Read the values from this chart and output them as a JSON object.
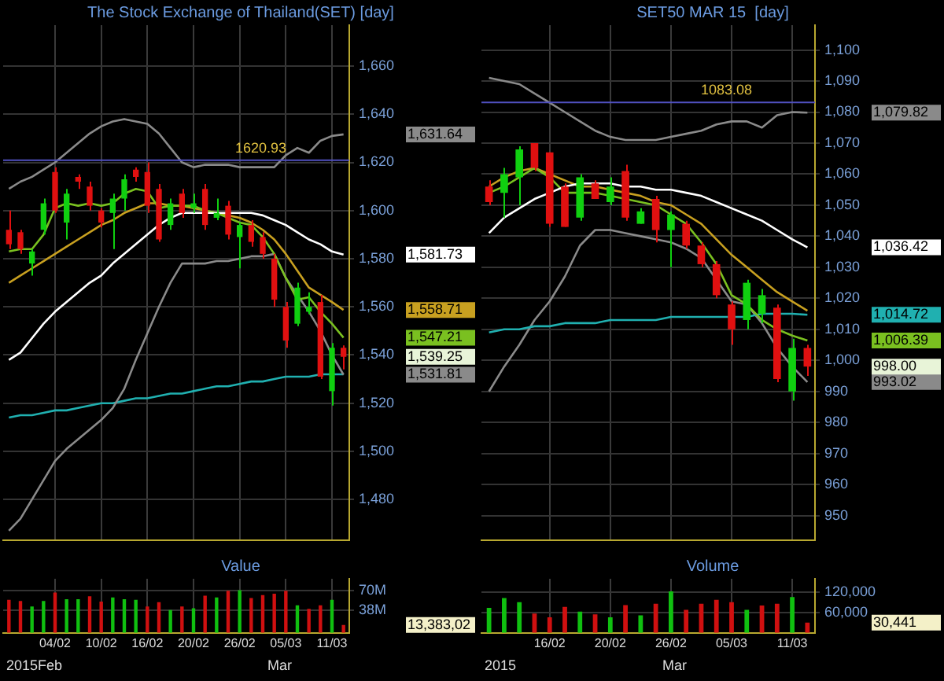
{
  "chart_data": [
    {
      "type": "candlestick",
      "title": "The Stock Exchange of Thailand(SET) [day]",
      "categories": [
        null,
        null,
        null,
        null,
        null,
        null,
        null,
        null,
        null,
        null,
        null,
        null,
        null,
        null,
        null,
        null,
        null,
        null,
        null,
        null,
        null,
        null,
        null,
        null,
        null,
        null,
        null,
        null,
        null,
        null
      ],
      "ohlc": [
        [
          1592,
          1600,
          1584,
          1586
        ],
        [
          1591,
          1592,
          1582,
          1584
        ],
        [
          1578,
          1584,
          1573,
          1583
        ],
        [
          1592,
          1605,
          1590,
          1603
        ],
        [
          1616,
          1618,
          1599,
          1600
        ],
        [
          1595,
          1609,
          1588,
          1607
        ],
        [
          1614,
          1615,
          1609,
          1612
        ],
        [
          1610,
          1612,
          1600,
          1602
        ],
        [
          1600,
          1601,
          1593,
          1595
        ],
        [
          1599,
          1607,
          1584,
          1605
        ],
        [
          1605,
          1615,
          1600,
          1613
        ],
        [
          1617,
          1618,
          1612,
          1614
        ],
        [
          1616,
          1620,
          1599,
          1602
        ],
        [
          1609,
          1611,
          1587,
          1588
        ],
        [
          1594,
          1605,
          1592,
          1603
        ],
        [
          1607,
          1609,
          1597,
          1599
        ],
        [
          1601,
          1607,
          1599,
          1603
        ],
        [
          1609,
          1611,
          1592,
          1594
        ],
        [
          1597,
          1605,
          1596,
          1599
        ],
        [
          1602,
          1604,
          1588,
          1590
        ],
        [
          1589,
          1595,
          1576,
          1594
        ],
        [
          1594,
          1596,
          1585,
          1587
        ],
        [
          1589,
          1591,
          1580,
          1582
        ],
        [
          1580,
          1582,
          1560,
          1563
        ],
        [
          1560,
          1562,
          1543,
          1546
        ],
        [
          1553,
          1570,
          1552,
          1568
        ],
        [
          1558,
          1566,
          1557,
          1560
        ],
        [
          1562,
          1565,
          1530,
          1531
        ],
        [
          1525,
          1545,
          1519,
          1543
        ],
        [
          1543,
          1544,
          1534,
          1539.25
        ]
      ],
      "colors": [
        "#e01010",
        "#e01010",
        "#10d010",
        "#10d010",
        "#e01010",
        "#10d010",
        "#e01010",
        "#e01010",
        "#e01010",
        "#10d010",
        "#10d010",
        "#e01010",
        "#e01010",
        "#e01010",
        "#10d010",
        "#e01010",
        "#10d010",
        "#e01010",
        "#10d010",
        "#e01010",
        "#10d010",
        "#e01010",
        "#e01010",
        "#e01010",
        "#e01010",
        "#10d010",
        "#10d010",
        "#e01010",
        "#10d010",
        "#e01010"
      ],
      "series": [
        {
          "type": "line",
          "color": "#ffffff",
          "values": [
            1538,
            1541,
            1547,
            1553,
            1558,
            1562,
            1566,
            1570,
            1573,
            1578,
            1582,
            1586,
            1590,
            1594,
            1597,
            1599,
            1599,
            1599,
            1599,
            1599,
            1599,
            1599,
            1598,
            1596,
            1594,
            1591,
            1588,
            1586,
            1583,
            1581.73
          ]
        },
        {
          "type": "line",
          "color": "#7ac020",
          "values": [
            1583,
            1584,
            1584,
            1590,
            1601,
            1603,
            1602,
            1603,
            1602,
            1603,
            1607,
            1609,
            1608,
            1601,
            1602,
            1602,
            1602,
            1600,
            1599,
            1597,
            1595,
            1594,
            1589,
            1582,
            1572,
            1563,
            1564,
            1558,
            1553,
            1547.21
          ]
        },
        {
          "type": "line",
          "color": "#c8a020",
          "values": [
            1570,
            1573,
            1576,
            1579,
            1582,
            1585,
            1588,
            1591,
            1594,
            1596,
            1599,
            1601,
            1603,
            1603,
            1602,
            1602,
            1601,
            1600,
            1599,
            1598,
            1597,
            1595,
            1592,
            1588,
            1582,
            1575,
            1568,
            1565,
            1562,
            1558.71
          ]
        },
        {
          "type": "line",
          "color": "#8a8a8a",
          "values": [
            1609,
            1612,
            1614,
            1617,
            1620,
            1624,
            1628,
            1632,
            1635,
            1637,
            1638,
            1637,
            1636,
            1632,
            1626,
            1620,
            1618,
            1619,
            1619,
            1619,
            1618,
            1618,
            1618,
            1618,
            1623,
            1626,
            1624,
            1629,
            1631,
            1631.64
          ]
        },
        {
          "type": "line",
          "color": "#8a8a8a",
          "values": [
            1467,
            1472,
            1480,
            1488,
            1496,
            1501,
            1505,
            1509,
            1513,
            1518,
            1526,
            1538,
            1549,
            1560,
            1570,
            1578,
            1578,
            1578,
            1579,
            1579,
            1580,
            1581,
            1581,
            1582,
            1572,
            1565,
            1558,
            1550,
            1540,
            1531.81
          ]
        },
        {
          "type": "line",
          "color": "#20b0b0",
          "values": [
            1514,
            1515,
            1515,
            1516,
            1517,
            1517,
            1518,
            1519,
            1520,
            1520,
            1521,
            1522,
            1522,
            1523,
            1524,
            1524,
            1525,
            1526,
            1527,
            1527,
            1528,
            1529,
            1529,
            1530,
            1531,
            1531,
            1531,
            1532,
            1532,
            1532
          ]
        }
      ],
      "ylim": [
        1463,
        1677
      ],
      "yticks": [
        {
          "value": 1480,
          "label": "1,480"
        },
        {
          "value": 1500,
          "label": "1,500"
        },
        {
          "value": 1520,
          "label": "1,520"
        },
        {
          "value": 1540,
          "label": "1,540"
        },
        {
          "value": 1560,
          "label": "1,560"
        },
        {
          "value": 1580,
          "label": "1,580"
        },
        {
          "value": 1600,
          "label": "1,600"
        },
        {
          "value": 1620,
          "label": "1,620"
        },
        {
          "value": 1640,
          "label": "1,640"
        },
        {
          "value": 1660,
          "label": "1,660"
        }
      ],
      "ref_lines": [
        {
          "axis": "y",
          "value": 1620.93,
          "label": "1620.93",
          "color": "#5050c0"
        }
      ],
      "annotations": [
        "1,581.73",
        "1,547.21",
        "1,558.71",
        "1,631.64",
        "1,531.81",
        "1,539.25"
      ],
      "grid": true,
      "marker": "none",
      "tick_labels": "y"
    },
    {
      "type": "bar",
      "title": "Value",
      "categories": [
        null,
        null,
        null,
        null,
        "04/02",
        null,
        null,
        null,
        "10/02",
        null,
        null,
        null,
        "16/02",
        null,
        null,
        null,
        "20/02",
        null,
        null,
        null,
        "26/02",
        null,
        null,
        null,
        "05/03",
        null,
        null,
        null,
        "11/03",
        null
      ],
      "values": [
        55,
        53,
        44,
        53,
        67,
        56,
        56,
        61,
        52,
        59,
        56,
        55,
        44,
        51,
        38,
        44,
        41,
        62,
        59,
        70,
        71,
        58,
        63,
        65,
        70,
        46,
        40,
        46,
        55,
        13
      ],
      "colors": [
        "#d01010",
        "#d01010",
        "#10c010",
        "#10c010",
        "#d01010",
        "#10c010",
        "#10c010",
        "#d01010",
        "#d01010",
        "#10c010",
        "#10c010",
        "#10c010",
        "#d01010",
        "#d01010",
        "#10c010",
        "#d01010",
        "#10c010",
        "#d01010",
        "#10c010",
        "#d01010",
        "#10c010",
        "#d01010",
        "#d01010",
        "#d01010",
        "#d01010",
        "#10c010",
        "#d01010",
        "#d01010",
        "#10c010",
        "#d01010"
      ],
      "ylim": [
        0,
        90
      ],
      "yticks": [
        {
          "value": 38,
          "label": "38M"
        },
        {
          "value": 70,
          "label": "70M"
        }
      ],
      "annotations": [
        "13,383,02",
        "2015Feb",
        "Mar"
      ],
      "grid": true
    },
    {
      "type": "candlestick",
      "title": "SET50 MAR 15  [day]",
      "categories": [
        null,
        null,
        null,
        null,
        null,
        null,
        null,
        null,
        null,
        null,
        null,
        null,
        null,
        null,
        null,
        null,
        null,
        null,
        null,
        null,
        null,
        null
      ],
      "ohlc": [
        [
          1056,
          1058,
          1050,
          1051
        ],
        [
          1054,
          1062,
          1046,
          1060
        ],
        [
          1059,
          1069,
          1050,
          1068
        ],
        [
          1070,
          1070,
          1061,
          1062
        ],
        [
          1067,
          1067,
          1043,
          1044
        ],
        [
          1056,
          1057,
          1043,
          1043
        ],
        [
          1046,
          1060,
          1045,
          1059
        ],
        [
          1057,
          1058,
          1052,
          1052
        ],
        [
          1051,
          1059,
          1050,
          1056
        ],
        [
          1061,
          1063,
          1045,
          1046
        ],
        [
          1044,
          1049,
          1044,
          1048
        ],
        [
          1052,
          1053,
          1038,
          1042
        ],
        [
          1042,
          1048,
          1030,
          1047
        ],
        [
          1044,
          1045,
          1036,
          1037
        ],
        [
          1037,
          1038,
          1030,
          1031
        ],
        [
          1031,
          1032,
          1020,
          1021
        ],
        [
          1018,
          1019,
          1005,
          1010
        ],
        [
          1013,
          1026,
          1010,
          1025
        ],
        [
          1015,
          1023,
          1012,
          1021
        ],
        [
          1017,
          1018,
          993,
          994
        ],
        [
          990,
          1007,
          987,
          1004
        ],
        [
          1004,
          1005,
          995,
          998
        ]
      ],
      "colors": [
        "#e01010",
        "#10d010",
        "#10d010",
        "#e01010",
        "#e01010",
        "#e01010",
        "#10d010",
        "#e01010",
        "#10d010",
        "#e01010",
        "#10d010",
        "#e01010",
        "#10d010",
        "#e01010",
        "#e01010",
        "#e01010",
        "#e01010",
        "#10d010",
        "#10d010",
        "#e01010",
        "#10d010",
        "#e01010"
      ],
      "series": [
        {
          "type": "line",
          "color": "#ffffff",
          "values": [
            1041,
            1046,
            1049,
            1052,
            1054,
            1056,
            1057,
            1057,
            1057,
            1056,
            1056,
            1055,
            1055,
            1054,
            1053,
            1051,
            1049,
            1047,
            1045,
            1042,
            1039,
            1036.42
          ]
        },
        {
          "type": "line",
          "color": "#7ac020",
          "values": [
            1054,
            1056,
            1059,
            1062,
            1059,
            1054,
            1054,
            1054,
            1053,
            1052,
            1051,
            1050,
            1047,
            1044,
            1038,
            1031,
            1021,
            1018,
            1013,
            1010,
            1008,
            1006.39
          ]
        },
        {
          "type": "line",
          "color": "#20b0b0",
          "values": [
            1009,
            1010,
            1010,
            1011,
            1011,
            1012,
            1012,
            1012,
            1013,
            1013,
            1013,
            1013,
            1014,
            1014,
            1014,
            1014,
            1014,
            1014,
            1015,
            1015,
            1015,
            1014.72
          ]
        },
        {
          "type": "line",
          "color": "#8a8a8a",
          "values": [
            1091,
            1090,
            1089,
            1086,
            1083,
            1080,
            1077,
            1074,
            1072,
            1071,
            1071,
            1071,
            1072,
            1073,
            1074,
            1076,
            1077,
            1077,
            1075,
            1079,
            1080,
            1079.82
          ]
        },
        {
          "type": "line",
          "color": "#8a8a8a",
          "values": [
            990,
            998,
            1005,
            1013,
            1019,
            1027,
            1037,
            1042,
            1042,
            1041,
            1040,
            1039,
            1038,
            1036,
            1033,
            1026,
            1019,
            1018,
            1012,
            1004,
            998,
            993.02
          ]
        },
        {
          "type": "line",
          "color": "#c8a020",
          "values": [
            1056,
            1059,
            1061,
            1062,
            1060,
            1058,
            1056,
            1056,
            1055,
            1054,
            1053,
            1051,
            1050,
            1047,
            1044,
            1039,
            1034,
            1030,
            1026,
            1022,
            1019,
            1016
          ]
        }
      ],
      "ylim": [
        942,
        1108
      ],
      "yticks": [
        950,
        960,
        970,
        980,
        990,
        {
          "value": 1000,
          "label": "1,000"
        },
        {
          "value": 1010,
          "label": "1,010"
        },
        {
          "value": 1020,
          "label": "1,020"
        },
        {
          "value": 1030,
          "label": "1,030"
        },
        {
          "value": 1040,
          "label": "1,040"
        },
        {
          "value": 1050,
          "label": "1,050"
        },
        {
          "value": 1060,
          "label": "1,060"
        },
        {
          "value": 1070,
          "label": "1,070"
        },
        {
          "value": 1080,
          "label": "1,080"
        },
        {
          "value": 1090,
          "label": "1,090"
        },
        {
          "value": 1100,
          "label": "1,100"
        }
      ],
      "ref_lines": [
        {
          "axis": "y",
          "value": 1083.08,
          "label": "1083.08",
          "color": "#5050c0"
        }
      ],
      "annotations": [
        "1,036.42",
        "1,006.39",
        "1,014.72",
        "1,079.82",
        "993.02",
        "998.00"
      ],
      "grid": true,
      "marker": "none",
      "tick_labels": "y"
    },
    {
      "type": "bar",
      "title": "Volume",
      "categories": [
        null,
        null,
        null,
        null,
        "16/02",
        null,
        null,
        null,
        "20/02",
        null,
        null,
        null,
        "26/02",
        null,
        null,
        null,
        "05/03",
        null,
        null,
        null,
        "11/03",
        null
      ],
      "values": [
        74000,
        103000,
        91000,
        57000,
        46000,
        77000,
        63000,
        55000,
        46000,
        82000,
        52000,
        86000,
        123000,
        68000,
        86000,
        98000,
        91000,
        68000,
        81000,
        86000,
        106000,
        30441
      ],
      "colors": [
        "#10c010",
        "#10c010",
        "#10c010",
        "#d01010",
        "#d01010",
        "#d01010",
        "#10c010",
        "#d01010",
        "#10c010",
        "#d01010",
        "#10c010",
        "#d01010",
        "#10c010",
        "#d01010",
        "#d01010",
        "#d01010",
        "#d01010",
        "#10c010",
        "#d01010",
        "#d01010",
        "#10c010",
        "#d01010"
      ],
      "ylim": [
        0,
        160000
      ],
      "yticks": [
        {
          "value": 60000,
          "label": "60,000"
        },
        {
          "value": 120000,
          "label": "120,000"
        }
      ],
      "annotations": [
        "30,441",
        "2015",
        "Mar"
      ],
      "grid": true
    }
  ]
}
